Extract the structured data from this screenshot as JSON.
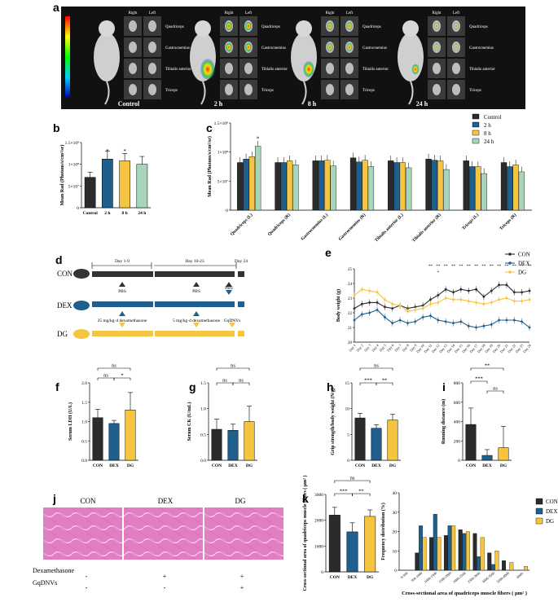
{
  "colors": {
    "con": "#2b2b2b",
    "dex": "#1f5f8b",
    "dg": "#f5c542",
    "h24": "#a8d5ba",
    "he": "#e58fc6"
  },
  "panel_labels": [
    "a",
    "b",
    "c",
    "d",
    "e",
    "f",
    "g",
    "h",
    "i",
    "j",
    "k"
  ],
  "panel_a": {
    "timepoints": [
      "Control",
      "2 h",
      "8 h",
      "24 h"
    ],
    "side_labels": [
      "Right",
      "Left"
    ],
    "muscles": [
      "Quadriceps",
      "Gastrocnemius",
      "Tibialis anterior",
      "Triceps"
    ]
  },
  "panel_d": {
    "groups": [
      "CON",
      "DEX",
      "DG"
    ],
    "days": [
      "Day 1-9",
      "Day 10-23",
      "Day 24"
    ],
    "con_marks": [
      "PBS",
      "PBS",
      "PBS"
    ],
    "dex_notes": [
      "25 mg/kg·d dexamethasone",
      "5 mg/kg·d dexamethasone",
      "GqDNVs"
    ]
  },
  "panel_j": {
    "cols": [
      "CON",
      "DEX",
      "DG"
    ],
    "rows": [
      {
        "label": "Dexamethasone",
        "vals": [
          "-",
          "+",
          "+"
        ]
      },
      {
        "label": "GqDNVs",
        "vals": [
          "-",
          "-",
          "+"
        ]
      }
    ]
  },
  "chart_data": [
    {
      "id": "b",
      "type": "bar",
      "categories": [
        "Control",
        "2 h",
        "8 h",
        "24 h"
      ],
      "values": [
        70000000.0,
        112000000.0,
        108000000.0,
        100000000.0
      ],
      "errors": [
        12000000.0,
        18000000.0,
        17000000.0,
        18000000.0
      ],
      "ylabel": "Mean Rad (Photons/s/cm²/sr)",
      "ylim": [
        0,
        150000000.0
      ],
      "yticks": [
        "0",
        "5×10⁷",
        "1×10⁸",
        "1.5×10⁸"
      ],
      "annotations": [
        "*",
        "*"
      ]
    },
    {
      "id": "c",
      "type": "bar",
      "categories": [
        "Quadriceps (L)",
        "Quadriceps (R)",
        "Gastrocnemius (L)",
        "Gastrocnemius (R)",
        "Tibialis anterior (L)",
        "Tibialis anterior (R)",
        "Triceps (L)",
        "Triceps (R)"
      ],
      "series": [
        {
          "name": "Control",
          "values": [
            82000000.0,
            82000000.0,
            85000000.0,
            90000000.0,
            85000000.0,
            88000000.0,
            85000000.0,
            82000000.0
          ]
        },
        {
          "name": "2 h",
          "values": [
            88000000.0,
            82000000.0,
            85000000.0,
            83000000.0,
            82000000.0,
            86000000.0,
            75000000.0,
            75000000.0
          ]
        },
        {
          "name": "8 h",
          "values": [
            92000000.0,
            85000000.0,
            86000000.0,
            86000000.0,
            82000000.0,
            85000000.0,
            75000000.0,
            78000000.0
          ]
        },
        {
          "name": "24 h",
          "values": [
            110000000.0,
            78000000.0,
            76000000.0,
            75000000.0,
            73000000.0,
            70000000.0,
            63000000.0,
            66000000.0
          ]
        }
      ],
      "ylabel": "Mean Rad (Photons/s/cm²/sr)",
      "ylim": [
        0,
        150000000.0
      ],
      "yticks": [
        "0",
        "5×10⁷",
        "1×10⁸",
        "1.5×10⁸"
      ],
      "annotations": [
        "*"
      ]
    },
    {
      "id": "e",
      "type": "line",
      "x": [
        "Day 1",
        "Day 2",
        "Day 3",
        "Day 4",
        "Day 5",
        "Day 6",
        "Day 7",
        "Day 8",
        "Day 9",
        "Day 10",
        "Day 11",
        "Day 12",
        "Day 13",
        "Day 14",
        "Day 15",
        "Day 16",
        "Day 17",
        "Day 18",
        "Day 19",
        "Day 20",
        "Day 21",
        "Day 22",
        "Day 23",
        "Day 24"
      ],
      "series": [
        {
          "name": "CON",
          "values": [
            22.3,
            22.6,
            22.7,
            22.7,
            22.4,
            22.3,
            22.5,
            22.3,
            22.4,
            22.5,
            22.9,
            23.2,
            23.6,
            23.4,
            23.6,
            23.5,
            23.6,
            23.1,
            23.5,
            23.9,
            23.9,
            23.4,
            23.4,
            23.5
          ]
        },
        {
          "name": "DEX",
          "values": [
            21.5,
            21.9,
            22.0,
            22.2,
            21.7,
            21.3,
            21.5,
            21.3,
            21.4,
            21.7,
            21.8,
            21.5,
            21.4,
            21.3,
            21.4,
            21.1,
            21.0,
            21.1,
            21.2,
            21.5,
            21.5,
            21.5,
            21.4,
            21.0
          ]
        },
        {
          "name": "DG",
          "values": [
            23.2,
            23.6,
            23.5,
            23.4,
            22.9,
            22.6,
            22.5,
            22.1,
            22.2,
            22.3,
            22.6,
            22.7,
            23.0,
            22.9,
            22.9,
            22.8,
            22.7,
            22.6,
            22.7,
            22.9,
            23.0,
            22.8,
            22.8,
            22.9
          ]
        }
      ],
      "ylabel": "Body weight (g)",
      "ylim": [
        20,
        25
      ],
      "yticks": [
        "20",
        "21",
        "22",
        "23",
        "24",
        "25"
      ],
      "annotations": [
        "**",
        "*"
      ]
    },
    {
      "id": "f",
      "type": "bar",
      "categories": [
        "CON",
        "DEX",
        "DG"
      ],
      "values": [
        1.1,
        0.95,
        1.3
      ],
      "errors": [
        0.22,
        0.08,
        0.45
      ],
      "ylabel": "Serum LDH (U/L)",
      "ylim": [
        0,
        2.0
      ],
      "yticks": [
        "0.0",
        "0.5",
        "1.0",
        "1.5",
        "2.0"
      ],
      "annotations": [
        "ns",
        "ns",
        "*"
      ]
    },
    {
      "id": "g",
      "type": "bar",
      "categories": [
        "CON",
        "DEX",
        "DG"
      ],
      "values": [
        0.6,
        0.58,
        0.75
      ],
      "errors": [
        0.2,
        0.12,
        0.3
      ],
      "ylabel": "Serum CK (U/mL)",
      "ylim": [
        0,
        1.5
      ],
      "yticks": [
        "0.0",
        "0.5",
        "1.0",
        "1.5"
      ],
      "annotations": [
        "ns",
        "ns",
        "ns"
      ]
    },
    {
      "id": "h",
      "type": "bar",
      "categories": [
        "CON",
        "DEX",
        "DG"
      ],
      "values": [
        8.2,
        6.2,
        7.8
      ],
      "errors": [
        0.9,
        0.7,
        1.1
      ],
      "ylabel": "Grip strength/body weight (N/g)",
      "ylim": [
        0,
        15
      ],
      "yticks": [
        "0",
        "5",
        "10",
        "15"
      ],
      "annotations": [
        "***",
        "**",
        "ns"
      ]
    },
    {
      "id": "i",
      "type": "bar",
      "categories": [
        "CON",
        "DEX",
        "DG"
      ],
      "values": [
        370,
        50,
        130
      ],
      "errors": [
        170,
        60,
        220
      ],
      "ylabel": "Running distance (m)",
      "ylim": [
        0,
        800
      ],
      "yticks": [
        "0",
        "200",
        "400",
        "600",
        "800"
      ],
      "annotations": [
        "***",
        "ns",
        "**"
      ]
    },
    {
      "id": "k1",
      "type": "bar",
      "categories": [
        "CON",
        "DEX",
        "DG"
      ],
      "values": [
        2200,
        1550,
        2150
      ],
      "errors": [
        300,
        350,
        250
      ],
      "ylabel": "Cross-sectional area of quadriceps muscle fibers ( μm² )",
      "ylim": [
        0,
        3000
      ],
      "yticks": [
        "0",
        "1000",
        "2000",
        "3000"
      ],
      "annotations": [
        "***",
        "**",
        "ns"
      ]
    },
    {
      "id": "k2",
      "type": "bar",
      "categories": [
        "0-500",
        "500-1000",
        "1000-1500",
        "1500-2000",
        "2000-2500",
        "2500-3000",
        "3000-3500",
        "3500-4000",
        "4000-"
      ],
      "series": [
        {
          "name": "CON",
          "values": [
            0,
            9,
            17,
            18,
            21,
            19,
            9,
            5,
            0
          ]
        },
        {
          "name": "DEX",
          "values": [
            0,
            23,
            29,
            23,
            19,
            7,
            3,
            0,
            0
          ]
        },
        {
          "name": "DG",
          "values": [
            0,
            17,
            17,
            23,
            20,
            17,
            10,
            4,
            2
          ]
        }
      ],
      "xlabel": "Cross-sectional area of quadriceps muscle fibers ( μm² )",
      "ylabel": "Frequency distribution (%)",
      "ylim": [
        0,
        40
      ],
      "yticks": [
        "0",
        "10",
        "20",
        "30",
        "40"
      ]
    }
  ]
}
